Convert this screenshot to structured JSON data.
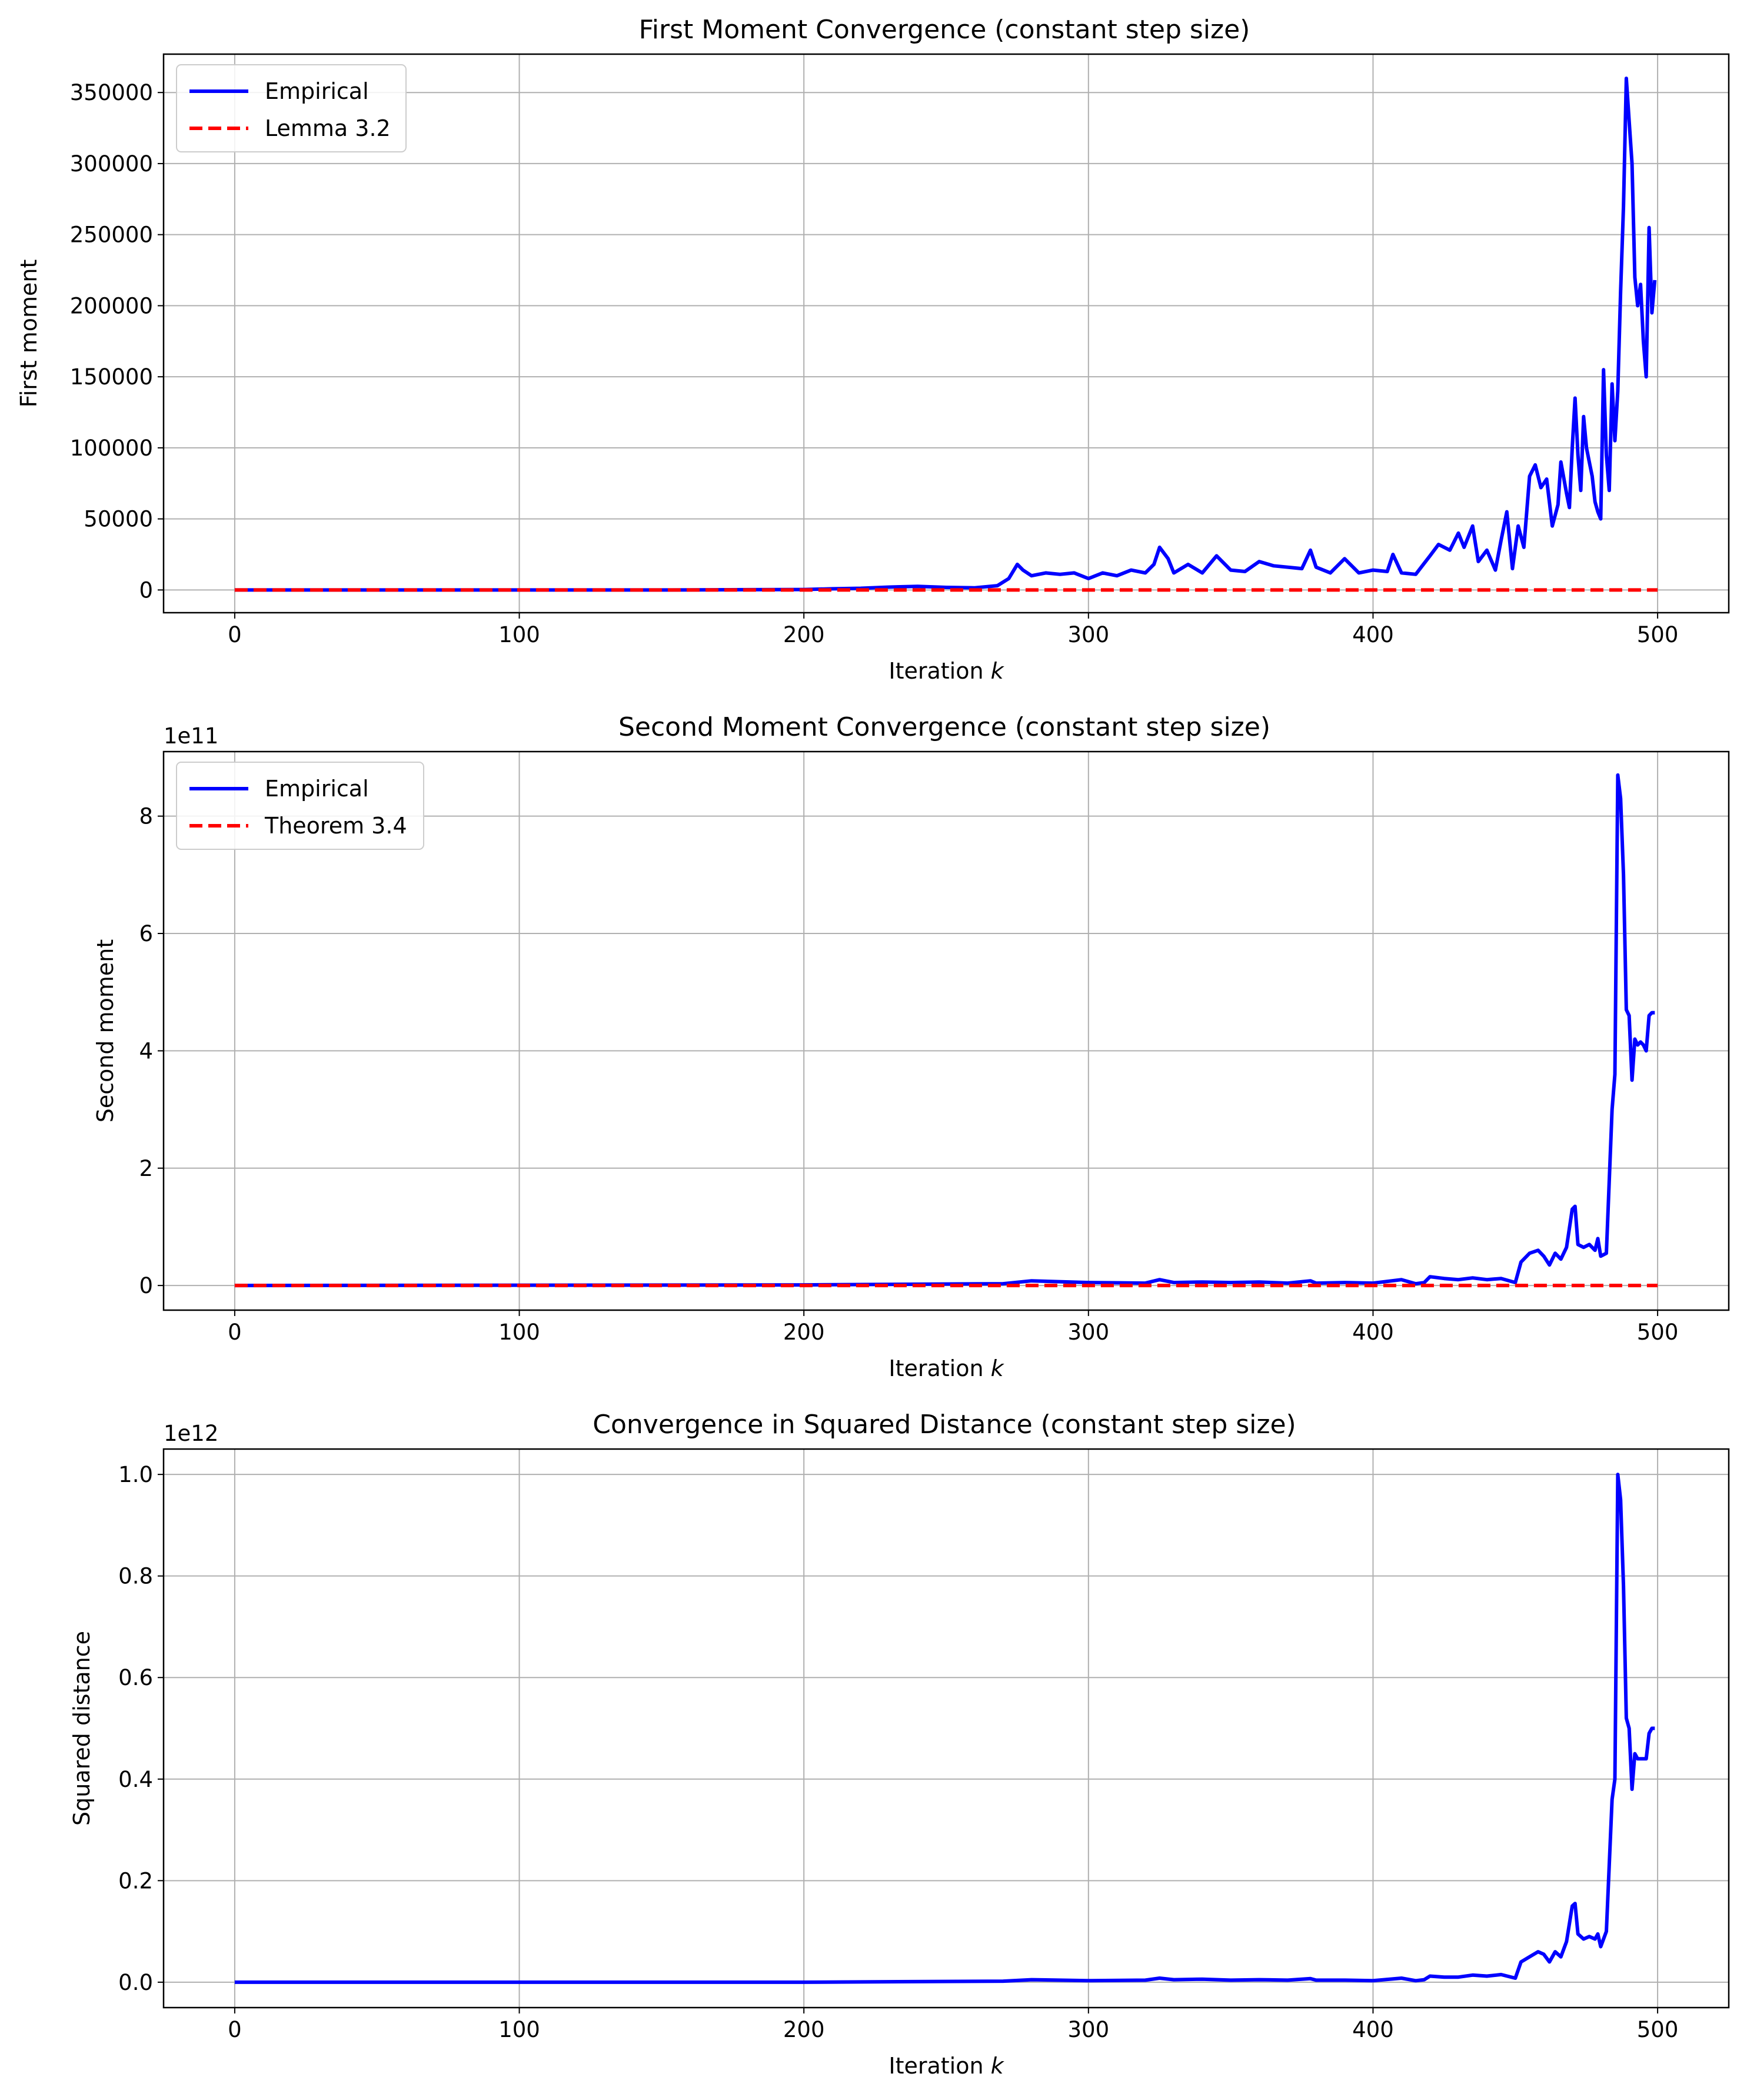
{
  "chart_data": [
    {
      "type": "line",
      "title": "First Moment Convergence (constant step size)",
      "xlabel": "Iteration k",
      "ylabel": "First moment",
      "offset_text": "",
      "xlim": [
        -25,
        525
      ],
      "ylim": [
        -16000,
        377000
      ],
      "xticks": [
        0,
        100,
        200,
        300,
        400,
        500
      ],
      "yticks": [
        0,
        50000,
        100000,
        150000,
        200000,
        250000,
        300000,
        350000
      ],
      "ytick_labels": [
        "0",
        "50000",
        "100000",
        "150000",
        "200000",
        "250000",
        "300000",
        "350000"
      ],
      "grid": true,
      "legend_position": "upper left",
      "series": [
        {
          "name": "Empirical",
          "color": "#0000ff",
          "style": "solid",
          "x": [
            0,
            50,
            100,
            150,
            200,
            210,
            220,
            230,
            240,
            250,
            260,
            268,
            272,
            275,
            277,
            280,
            285,
            290,
            295,
            300,
            305,
            310,
            315,
            320,
            323,
            325,
            328,
            330,
            335,
            340,
            345,
            350,
            355,
            360,
            365,
            370,
            375,
            378,
            380,
            385,
            390,
            395,
            400,
            405,
            407,
            410,
            415,
            420,
            423,
            425,
            427,
            430,
            432,
            435,
            437,
            440,
            443,
            445,
            447,
            449,
            451,
            453,
            455,
            457,
            459,
            461,
            463,
            465,
            466,
            468,
            469,
            470,
            471,
            472,
            473,
            474,
            475,
            476,
            477,
            478,
            479,
            480,
            481,
            482,
            483,
            484,
            485,
            486,
            487,
            488,
            489,
            490,
            491,
            492,
            493,
            494,
            495,
            496,
            497,
            498,
            499
          ],
          "y": [
            0,
            0,
            0,
            0,
            300,
            800,
            1200,
            2000,
            2500,
            1800,
            1500,
            3000,
            8000,
            18000,
            14000,
            10000,
            12000,
            11000,
            12000,
            8000,
            12000,
            10000,
            14000,
            12000,
            18000,
            30000,
            22000,
            12000,
            18000,
            12000,
            24000,
            14000,
            13000,
            20000,
            17000,
            16000,
            15000,
            28000,
            16000,
            12000,
            22000,
            12000,
            14000,
            13000,
            25000,
            12000,
            11000,
            24000,
            32000,
            30000,
            28000,
            40000,
            30000,
            45000,
            20000,
            28000,
            14000,
            35000,
            55000,
            15000,
            45000,
            30000,
            80000,
            88000,
            72000,
            78000,
            45000,
            60000,
            90000,
            68000,
            58000,
            100000,
            135000,
            95000,
            70000,
            122000,
            100000,
            90000,
            80000,
            62000,
            55000,
            50000,
            155000,
            95000,
            70000,
            145000,
            105000,
            140000,
            210000,
            270000,
            360000,
            330000,
            300000,
            220000,
            200000,
            215000,
            175000,
            150000,
            255000,
            195000,
            218000
          ]
        },
        {
          "name": "Lemma 3.2",
          "color": "#ff0000",
          "style": "dashed",
          "x": [
            0,
            500
          ],
          "y": [
            0,
            0
          ]
        }
      ]
    },
    {
      "type": "line",
      "title": "Second Moment Convergence (constant step size)",
      "xlabel": "Iteration k",
      "ylabel": "Second moment",
      "offset_text": "1e11",
      "xlim": [
        -25,
        525
      ],
      "ylim": [
        -0.42,
        9.1
      ],
      "xticks": [
        0,
        100,
        200,
        300,
        400,
        500
      ],
      "yticks": [
        0,
        2,
        4,
        6,
        8
      ],
      "ytick_labels": [
        "0",
        "2",
        "4",
        "6",
        "8"
      ],
      "grid": true,
      "legend_position": "upper left",
      "series": [
        {
          "name": "Empirical",
          "color": "#0000ff",
          "style": "solid",
          "x": [
            0,
            200,
            270,
            280,
            300,
            320,
            325,
            330,
            340,
            350,
            360,
            370,
            378,
            380,
            390,
            400,
            410,
            415,
            418,
            420,
            425,
            430,
            435,
            440,
            445,
            450,
            452,
            455,
            458,
            460,
            462,
            464,
            466,
            468,
            470,
            471,
            472,
            474,
            476,
            478,
            479,
            480,
            482,
            484,
            485,
            486,
            487,
            488,
            489,
            490,
            491,
            492,
            493,
            494,
            495,
            496,
            497,
            498,
            499
          ],
          "y": [
            0,
            0.01,
            0.03,
            0.08,
            0.05,
            0.04,
            0.1,
            0.05,
            0.06,
            0.05,
            0.06,
            0.04,
            0.08,
            0.04,
            0.05,
            0.04,
            0.1,
            0.03,
            0.05,
            0.15,
            0.12,
            0.1,
            0.13,
            0.1,
            0.12,
            0.05,
            0.4,
            0.55,
            0.6,
            0.5,
            0.35,
            0.55,
            0.45,
            0.65,
            1.3,
            1.35,
            0.7,
            0.65,
            0.7,
            0.6,
            0.8,
            0.5,
            0.55,
            3.0,
            3.6,
            8.7,
            8.3,
            7.0,
            4.7,
            4.6,
            3.5,
            4.2,
            4.1,
            4.15,
            4.1,
            4.0,
            4.6,
            4.65,
            4.65
          ]
        },
        {
          "name": "Theorem 3.4",
          "color": "#ff0000",
          "style": "dashed",
          "x": [
            0,
            500
          ],
          "y": [
            0,
            0
          ]
        }
      ]
    },
    {
      "type": "line",
      "title": "Convergence in Squared Distance (constant step size)",
      "xlabel": "Iteration k",
      "ylabel": "Squared distance",
      "offset_text": "1e12",
      "xlim": [
        -25,
        525
      ],
      "ylim": [
        -0.05,
        1.05
      ],
      "xticks": [
        0,
        100,
        200,
        300,
        400,
        500
      ],
      "yticks": [
        0.0,
        0.2,
        0.4,
        0.6,
        0.8,
        1.0
      ],
      "ytick_labels": [
        "0.0",
        "0.2",
        "0.4",
        "0.6",
        "0.8",
        "1.0"
      ],
      "grid": true,
      "legend_position": "none",
      "series": [
        {
          "name": "",
          "color": "#0000ff",
          "style": "solid",
          "x": [
            0,
            200,
            270,
            280,
            300,
            320,
            325,
            330,
            340,
            350,
            360,
            370,
            378,
            380,
            390,
            400,
            410,
            415,
            418,
            420,
            425,
            430,
            435,
            440,
            445,
            450,
            452,
            455,
            458,
            460,
            462,
            464,
            466,
            468,
            470,
            471,
            472,
            474,
            476,
            478,
            479,
            480,
            482,
            484,
            485,
            486,
            487,
            488,
            489,
            490,
            491,
            492,
            493,
            494,
            495,
            496,
            497,
            498,
            499
          ],
          "y": [
            0,
            0.0,
            0.002,
            0.005,
            0.003,
            0.004,
            0.008,
            0.005,
            0.006,
            0.004,
            0.005,
            0.004,
            0.007,
            0.004,
            0.004,
            0.003,
            0.008,
            0.003,
            0.005,
            0.012,
            0.01,
            0.01,
            0.014,
            0.012,
            0.015,
            0.008,
            0.04,
            0.05,
            0.06,
            0.055,
            0.04,
            0.06,
            0.05,
            0.08,
            0.15,
            0.155,
            0.095,
            0.085,
            0.09,
            0.085,
            0.095,
            0.07,
            0.1,
            0.36,
            0.4,
            1.0,
            0.95,
            0.78,
            0.52,
            0.5,
            0.38,
            0.45,
            0.44,
            0.44,
            0.44,
            0.44,
            0.49,
            0.5,
            0.5
          ]
        }
      ]
    }
  ]
}
